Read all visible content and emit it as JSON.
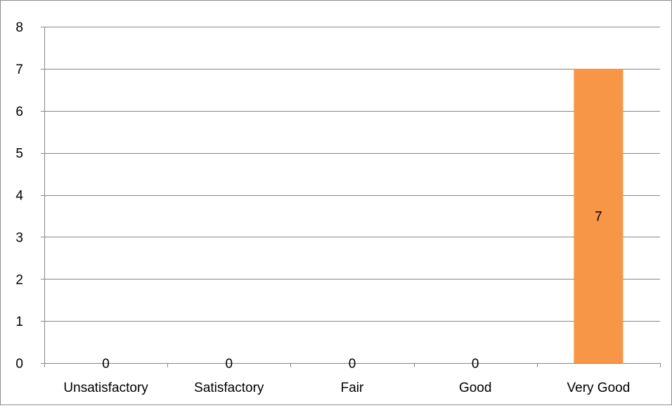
{
  "chart_data": {
    "type": "bar",
    "categories": [
      "Unsatisfactory",
      "Satisfactory",
      "Fair",
      "Good",
      "Very Good"
    ],
    "values": [
      0,
      0,
      0,
      0,
      7
    ],
    "data_labels": [
      "0",
      "0",
      "0",
      "0",
      "7"
    ],
    "title": "",
    "xlabel": "",
    "ylabel": "",
    "ylim": [
      0,
      8
    ],
    "y_ticks": [
      "0",
      "1",
      "2",
      "3",
      "4",
      "5",
      "6",
      "7",
      "8"
    ],
    "grid": true,
    "legend": "none",
    "bar_color": "#F79646",
    "gridline_color": "#868686"
  }
}
